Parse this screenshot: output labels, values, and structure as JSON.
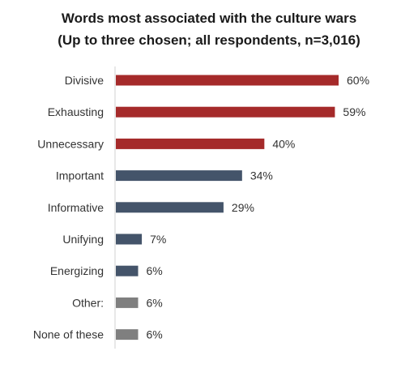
{
  "chart_data": {
    "type": "bar",
    "orientation": "horizontal",
    "title": "Words most associated with the culture wars",
    "subtitle": "(Up to three chosen; all respondents, n=3,016)",
    "categories": [
      "Divisive",
      "Exhausting",
      "Unnecessary",
      "Important",
      "Informative",
      "Unifying",
      "Energizing",
      "Other:",
      "None of these"
    ],
    "values": [
      60,
      59,
      40,
      34,
      29,
      7,
      6,
      6,
      6
    ],
    "value_labels": [
      "60%",
      "59%",
      "40%",
      "34%",
      "29%",
      "7%",
      "6%",
      "6%",
      "6%"
    ],
    "unit": "%",
    "xlim": [
      0,
      60
    ],
    "grid": false,
    "legend": "none",
    "bar_colors": [
      "#a52a2a",
      "#a52a2a",
      "#a52a2a",
      "#44546a",
      "#44546a",
      "#44546a",
      "#44546a",
      "#7f7f7f",
      "#7f7f7f"
    ]
  }
}
